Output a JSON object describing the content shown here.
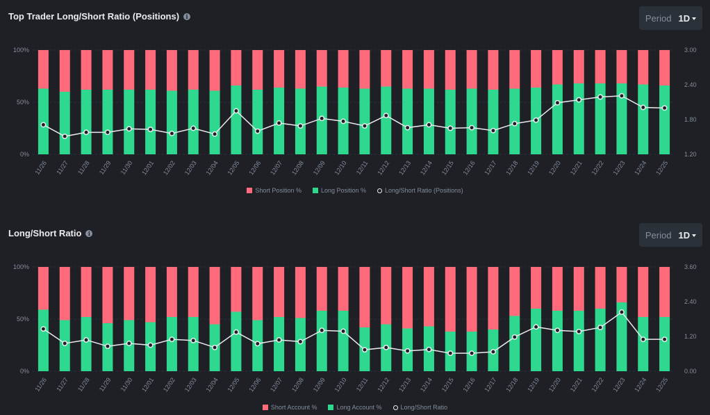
{
  "colors": {
    "short": "#ff6b7a",
    "long": "#2ed98f",
    "line": "#eaecef",
    "grid": "#2b3139",
    "axis": "#848e9c"
  },
  "panels": [
    {
      "title": "Top Trader Long/Short Ratio (Positions)",
      "period_label": "Period",
      "period_value": "1D",
      "legend": [
        "Short Position %",
        "Long Position %",
        "Long/Short Ratio (Positions)"
      ],
      "left_ticks": [
        "100%",
        "50%",
        "0%"
      ],
      "right_ticks": [
        "3.00",
        "2.40",
        "1.80",
        "1.20"
      ]
    },
    {
      "title": "Long/Short Ratio",
      "period_label": "Period",
      "period_value": "1D",
      "legend": [
        "Short Account %",
        "Long Account %",
        "Long/Short Ratio"
      ],
      "left_ticks": [
        "100%",
        "50%",
        "0%"
      ],
      "right_ticks": [
        "3.60",
        "2.40",
        "1.20",
        "0.00"
      ]
    }
  ],
  "chart_data": [
    {
      "type": "bar",
      "title": "Top Trader Long/Short Ratio (Positions)",
      "categories": [
        "11/26",
        "11/27",
        "11/28",
        "11/29",
        "11/30",
        "12/01",
        "12/02",
        "12/03",
        "12/04",
        "12/05",
        "12/06",
        "12/07",
        "12/08",
        "12/09",
        "12/10",
        "12/11",
        "12/12",
        "12/13",
        "12/14",
        "12/15",
        "12/16",
        "12/17",
        "12/18",
        "12/19",
        "12/20",
        "12/21",
        "12/22",
        "12/23",
        "12/24",
        "12/25"
      ],
      "series": [
        {
          "name": "Long Position %",
          "values": [
            63,
            60,
            62,
            62,
            62,
            62,
            61,
            62,
            61,
            66,
            62,
            64,
            63,
            65,
            64,
            63,
            65,
            63,
            63,
            62,
            63,
            62,
            63,
            64,
            67,
            68,
            68,
            68,
            67,
            66
          ]
        },
        {
          "name": "Short Position %",
          "values": [
            37,
            40,
            38,
            38,
            38,
            38,
            39,
            38,
            39,
            34,
            38,
            36,
            37,
            35,
            36,
            37,
            35,
            37,
            37,
            38,
            37,
            38,
            37,
            36,
            33,
            32,
            32,
            32,
            33,
            34
          ]
        },
        {
          "name": "Long/Short Ratio (Positions)",
          "values": [
            1.71,
            1.51,
            1.58,
            1.58,
            1.64,
            1.63,
            1.56,
            1.65,
            1.55,
            1.95,
            1.6,
            1.74,
            1.69,
            1.82,
            1.77,
            1.69,
            1.87,
            1.66,
            1.71,
            1.65,
            1.66,
            1.61,
            1.73,
            1.79,
            2.09,
            2.14,
            2.19,
            2.21,
            2.01,
            2.0
          ]
        }
      ],
      "ylim_left": [
        0,
        100
      ],
      "ylim_right": [
        1.2,
        3.0
      ]
    },
    {
      "type": "bar",
      "title": "Long/Short Ratio",
      "categories": [
        "11/26",
        "11/27",
        "11/28",
        "11/29",
        "11/30",
        "12/01",
        "12/02",
        "12/03",
        "12/04",
        "12/05",
        "12/06",
        "12/07",
        "12/08",
        "12/09",
        "12/10",
        "12/11",
        "12/12",
        "12/13",
        "12/14",
        "12/15",
        "12/16",
        "12/17",
        "12/18",
        "12/19",
        "12/20",
        "12/21",
        "12/22",
        "12/23",
        "12/24",
        "12/25"
      ],
      "series": [
        {
          "name": "Long Account %",
          "values": [
            59,
            49,
            52,
            46,
            49,
            47,
            52,
            52,
            45,
            57,
            49,
            52,
            51,
            58,
            58,
            42,
            45,
            41,
            43,
            38,
            38,
            40,
            53,
            60,
            58,
            58,
            60,
            66,
            52,
            52
          ]
        },
        {
          "name": "Short Account %",
          "values": [
            41,
            51,
            48,
            54,
            51,
            53,
            48,
            48,
            55,
            43,
            51,
            48,
            49,
            42,
            42,
            58,
            55,
            59,
            57,
            62,
            62,
            60,
            47,
            40,
            42,
            42,
            40,
            34,
            48,
            48
          ]
        },
        {
          "name": "Long/Short Ratio",
          "values": [
            1.46,
            0.96,
            1.08,
            0.86,
            0.96,
            0.9,
            1.1,
            1.06,
            0.82,
            1.35,
            0.95,
            1.08,
            1.02,
            1.41,
            1.38,
            0.74,
            0.82,
            0.7,
            0.75,
            0.62,
            0.62,
            0.67,
            1.18,
            1.53,
            1.41,
            1.37,
            1.51,
            2.04,
            1.1,
            1.1
          ]
        }
      ],
      "ylim_left": [
        0,
        100
      ],
      "ylim_right": [
        0,
        3.6
      ]
    }
  ]
}
